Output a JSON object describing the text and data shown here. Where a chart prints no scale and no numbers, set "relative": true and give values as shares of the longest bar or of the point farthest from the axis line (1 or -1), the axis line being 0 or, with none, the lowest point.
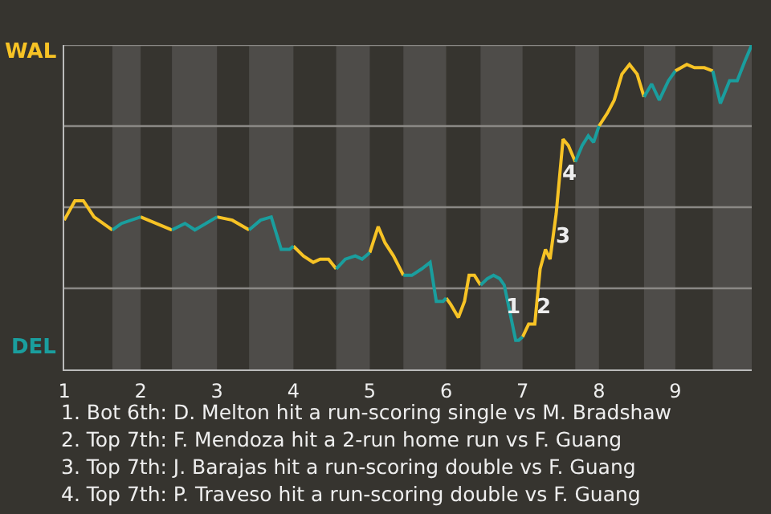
{
  "chart_data": {
    "type": "line",
    "relative": true,
    "x": [
      1.0,
      1.14,
      1.25,
      1.39,
      1.63,
      1.75,
      2.0,
      2.41,
      2.58,
      2.71,
      3.0,
      3.2,
      3.42,
      3.57,
      3.71,
      3.84,
      3.95,
      4.0,
      4.13,
      4.26,
      4.35,
      4.46,
      4.56,
      4.68,
      4.81,
      4.9,
      5.0,
      5.11,
      5.2,
      5.31,
      5.44,
      5.55,
      5.68,
      5.79,
      5.87,
      5.96,
      6.0,
      6.06,
      6.16,
      6.24,
      6.3,
      6.37,
      6.45,
      6.54,
      6.62,
      6.7,
      6.76,
      6.91,
      6.95,
      7.0,
      7.08,
      7.16,
      7.23,
      7.3,
      7.36,
      7.44,
      7.53,
      7.6,
      7.69,
      7.78,
      7.86,
      7.93,
      8.0,
      8.11,
      8.2,
      8.3,
      8.4,
      8.5,
      8.59,
      8.69,
      8.79,
      8.91,
      9.0,
      9.15,
      9.25,
      9.38,
      9.49
    ],
    "series": [
      {
        "color": "#f7c325",
        "values": [
          0.46,
          0.52,
          0.52,
          0.47,
          0.43,
          null,
          0.47,
          0.43,
          null,
          null,
          0.47,
          0.46,
          0.43,
          null,
          null,
          null,
          null,
          0.38,
          0.35,
          0.33,
          0.34,
          0.34,
          0.31,
          null,
          null,
          null,
          0.36,
          0.44,
          0.39,
          0.35,
          0.29,
          null,
          null,
          null,
          null,
          null,
          0.22,
          0.2,
          0.16,
          0.21,
          0.29,
          0.29,
          0.26,
          null,
          null,
          null,
          null,
          null,
          null,
          0.1,
          0.14,
          0.14,
          0.31,
          0.37,
          0.34,
          0.48,
          0.71,
          0.69,
          0.64,
          null,
          null,
          null,
          0.75,
          0.79,
          0.83,
          0.91,
          0.94,
          0.91,
          0.84,
          null,
          null,
          null,
          0.92,
          0.94,
          0.93,
          0.93,
          0.92
        ]
      },
      {
        "color": "#1a9e9e",
        "x": [
          1.63,
          1.75,
          2.0,
          2.2,
          2.41,
          2.58,
          2.71,
          3.0,
          3.2,
          3.42,
          3.57,
          3.71,
          3.84,
          3.95,
          4.0,
          4.13,
          4.26,
          4.35,
          4.46,
          4.56,
          4.68,
          4.81,
          4.9,
          5.0,
          5.11,
          5.2,
          5.31,
          5.44,
          5.55,
          5.68,
          5.79,
          5.87,
          5.96,
          6.0,
          6.06,
          6.16,
          6.24,
          6.3,
          6.37,
          6.45,
          6.54,
          6.62,
          6.7,
          6.76,
          6.91,
          6.95,
          7.0,
          7.08,
          7.16,
          7.23,
          7.3,
          7.36,
          7.44,
          7.53,
          7.6,
          7.69,
          7.78,
          7.86,
          7.93,
          8.0,
          8.11,
          8.2,
          8.3,
          8.4,
          8.5,
          8.59,
          8.69,
          8.79,
          8.91,
          9.0,
          9.15,
          9.25,
          9.38,
          9.49,
          9.59,
          9.71,
          9.81,
          9.91,
          10.0
        ],
        "values": [
          0.43,
          0.45,
          0.47,
          null,
          0.43,
          0.45,
          0.43,
          0.47,
          null,
          0.43,
          0.46,
          0.47,
          0.37,
          0.37,
          0.38,
          null,
          null,
          null,
          null,
          0.31,
          0.34,
          0.35,
          0.34,
          0.36,
          null,
          null,
          null,
          0.29,
          0.29,
          0.31,
          0.33,
          0.21,
          0.21,
          0.22,
          null,
          null,
          null,
          null,
          null,
          0.26,
          0.28,
          0.29,
          0.28,
          0.26,
          0.09,
          0.09,
          0.1,
          null,
          null,
          null,
          null,
          null,
          null,
          null,
          null,
          0.64,
          0.69,
          0.72,
          0.7,
          0.75,
          null,
          null,
          null,
          null,
          null,
          0.84,
          0.88,
          0.83,
          0.89,
          0.92,
          null,
          null,
          null,
          0.92,
          0.82,
          0.89,
          0.89,
          0.95,
          1
        ]
      }
    ],
    "xlim": [
      1,
      10
    ],
    "xticks": [
      1,
      2,
      3,
      4,
      5,
      6,
      7,
      8,
      9
    ],
    "bands": [
      {
        "axis": "x",
        "from": 1.63,
        "to": 2.0,
        "color": "#4e4c49"
      },
      {
        "axis": "x",
        "from": 2.41,
        "to": 3.0,
        "color": "#4e4c49"
      },
      {
        "axis": "x",
        "from": 3.42,
        "to": 4.0,
        "color": "#4e4c49"
      },
      {
        "axis": "x",
        "from": 4.56,
        "to": 5.0,
        "color": "#4e4c49"
      },
      {
        "axis": "x",
        "from": 5.44,
        "to": 6.0,
        "color": "#4e4c49"
      },
      {
        "axis": "x",
        "from": 6.45,
        "to": 7.0,
        "color": "#4e4c49"
      },
      {
        "axis": "x",
        "from": 7.69,
        "to": 8.0,
        "color": "#4e4c49"
      },
      {
        "axis": "x",
        "from": 8.59,
        "to": 9.0,
        "color": "#4e4c49"
      },
      {
        "axis": "x",
        "from": 9.49,
        "to": 10,
        "color": "#4e4c49"
      }
    ],
    "ref_lines": [
      {
        "axis": "y",
        "value": 0.25,
        "color": "#8a8885"
      },
      {
        "axis": "y",
        "value": 0.5,
        "color": "#8a8885"
      },
      {
        "axis": "y",
        "value": 0.75,
        "color": "#8a8885"
      },
      {
        "axis": "y",
        "value": 1,
        "color": "#8a8885"
      }
    ],
    "annotations": [
      "WAL",
      "DEL",
      {
        "text": "1",
        "x": 6.87,
        "y": 0.19
      },
      {
        "text": "2",
        "x": 7.27,
        "y": 0.19
      },
      {
        "text": "3",
        "x": 7.53,
        "y": 0.41
      },
      {
        "text": "4",
        "x": 7.62,
        "y": 0.6
      },
      "1. Bot 6th: D. Melton hit a run-scoring single vs M. Bradshaw",
      "2. Top 7th: F. Mendoza hit a 2-run home run vs F. Guang",
      "3. Top 7th: J. Barajas hit a run-scoring double vs F. Guang",
      "4. Top 7th: P. Traveso hit a run-scoring double vs F. Guang"
    ],
    "marker": "none",
    "line_style": "solid"
  }
}
